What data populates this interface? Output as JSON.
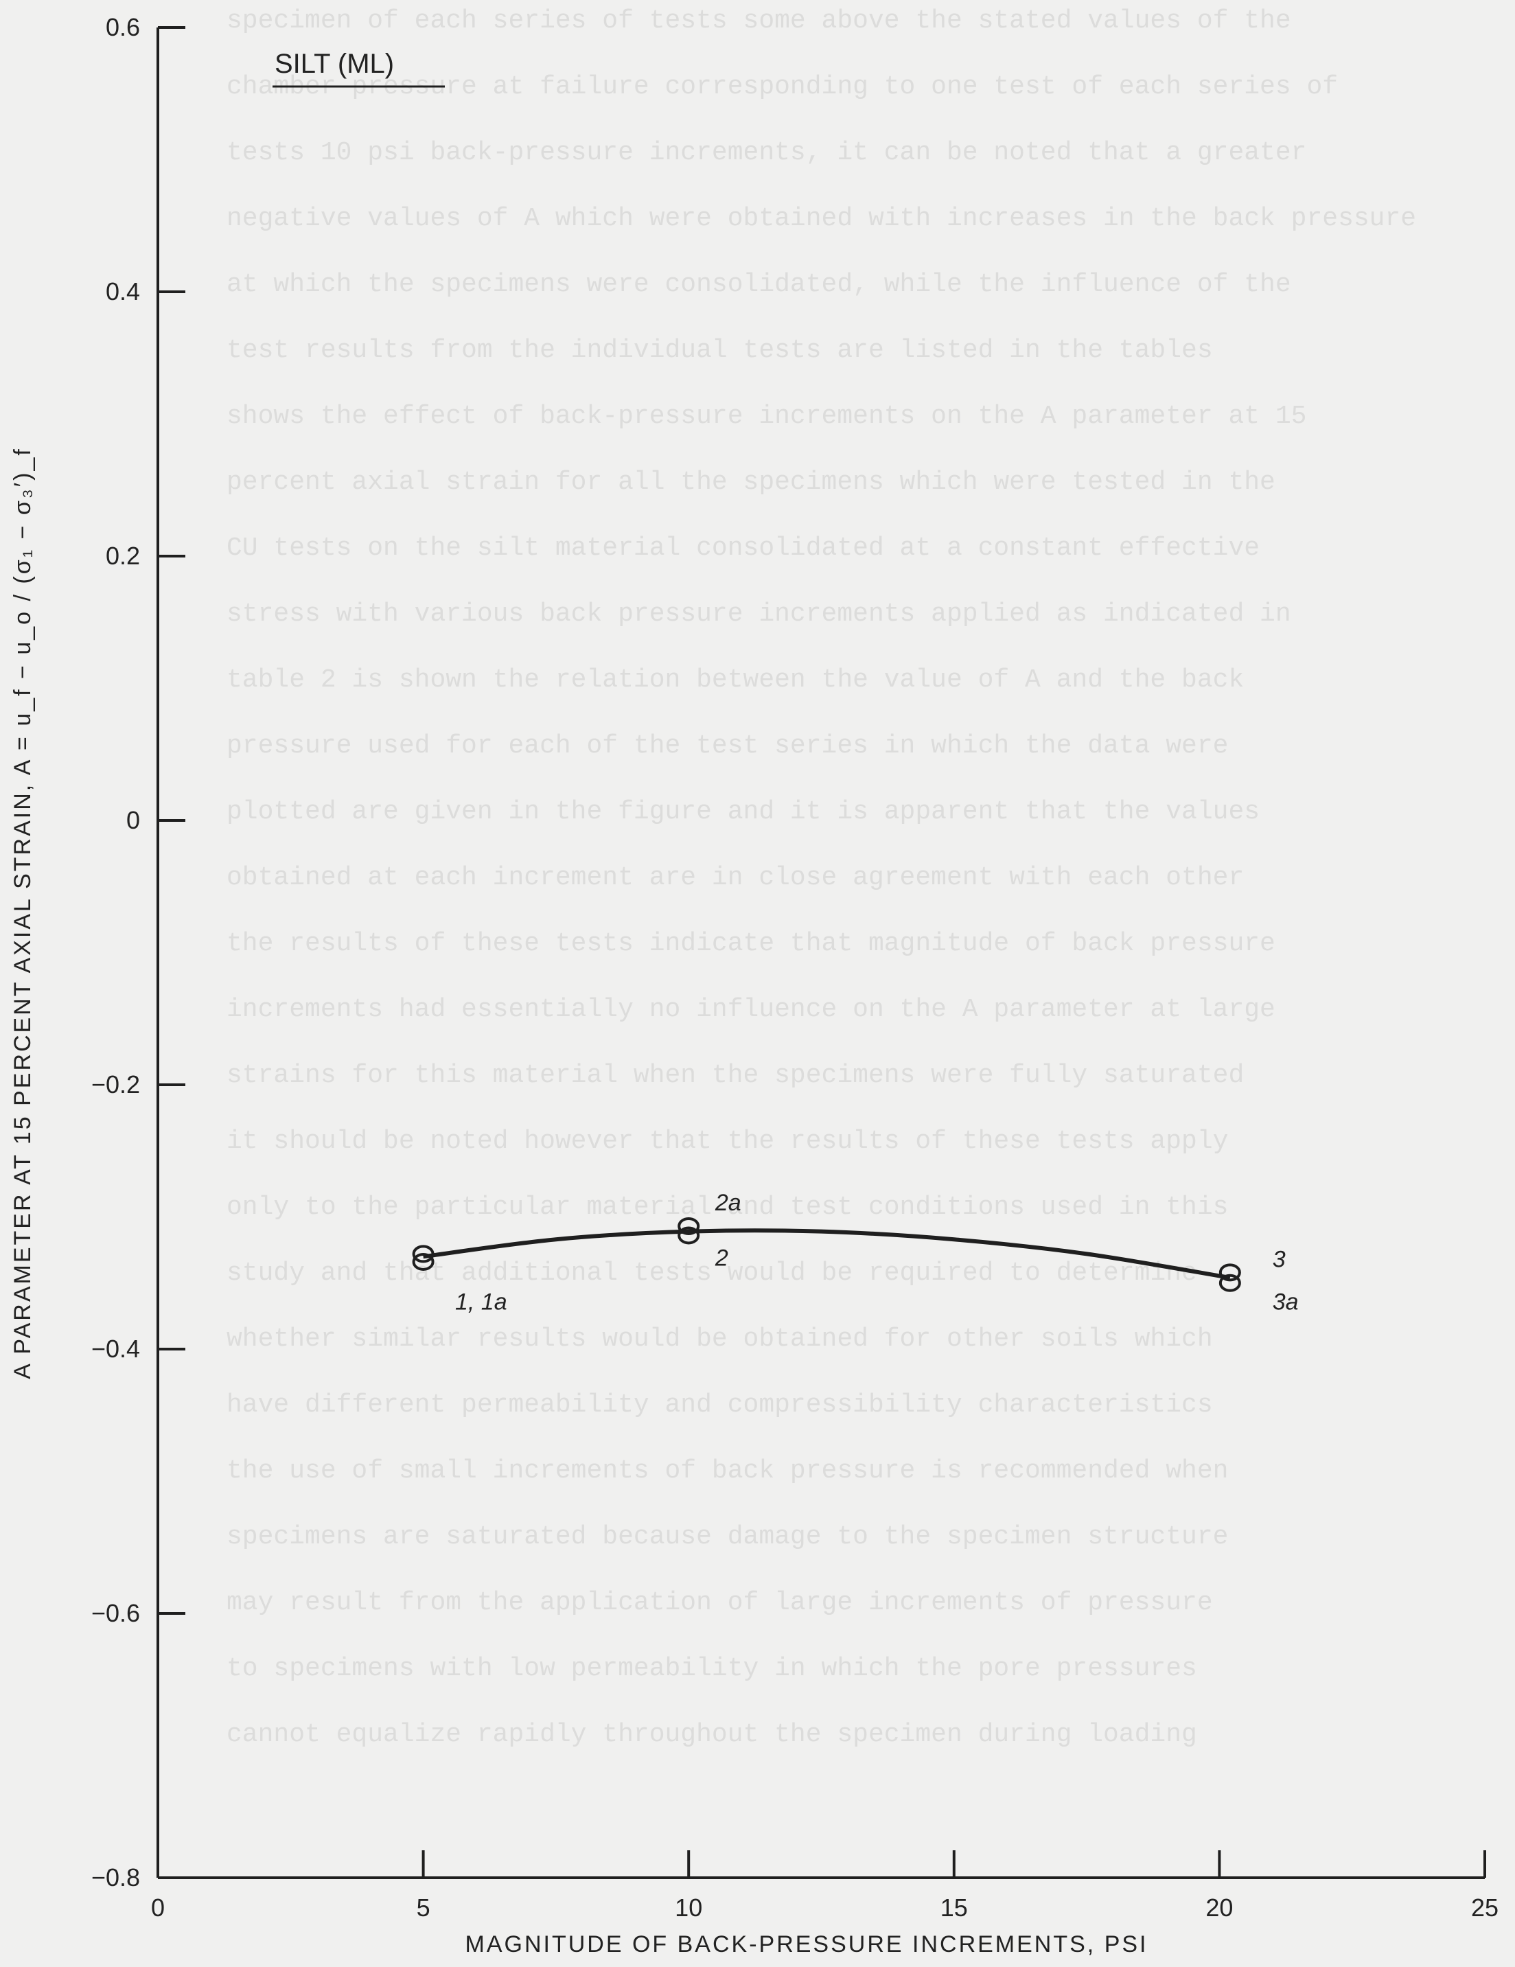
{
  "chart_data": {
    "type": "scatter",
    "title": "SILT (ML)",
    "xlabel": "MAGNITUDE OF BACK-PRESSURE INCREMENTS, PSI",
    "ylabel": "A PARAMETER AT 15 PERCENT AXIAL STRAIN, A = u_f − u_o / (σ₁ − σ₃′)_f",
    "xlim": [
      0,
      25
    ],
    "ylim": [
      -0.8,
      0.6
    ],
    "x_ticks": [
      0,
      5,
      10,
      15,
      20,
      25
    ],
    "y_ticks": [
      0.6,
      0.4,
      0.2,
      0,
      -0.2,
      -0.4,
      -0.6,
      -0.8
    ],
    "x_tick_labels": [
      "0",
      "5",
      "10",
      "15",
      "20",
      "25"
    ],
    "y_tick_labels": [
      "0.6",
      "0.4",
      "0.2",
      "0",
      "−0.2",
      "−0.4",
      "−0.6",
      "−0.8"
    ],
    "grid": false,
    "series": [
      {
        "points": [
          {
            "x": 5.0,
            "y": -0.328
          },
          {
            "x": 5.0,
            "y": -0.334
          },
          {
            "x": 10.0,
            "y": -0.307
          },
          {
            "x": 10.0,
            "y": -0.314
          },
          {
            "x": 20.2,
            "y": -0.342
          },
          {
            "x": 20.2,
            "y": -0.35
          }
        ],
        "curve": [
          {
            "x": 5.0,
            "y": -0.33
          },
          {
            "x": 7.5,
            "y": -0.317
          },
          {
            "x": 10.0,
            "y": -0.311
          },
          {
            "x": 12.5,
            "y": -0.311
          },
          {
            "x": 15.0,
            "y": -0.317
          },
          {
            "x": 17.5,
            "y": -0.328
          },
          {
            "x": 20.2,
            "y": -0.346
          }
        ]
      }
    ],
    "annotations": [
      {
        "text": "1, 1a",
        "x": 5.6,
        "y": -0.37
      },
      {
        "text": "2a",
        "x": 10.5,
        "y": -0.295
      },
      {
        "text": "2",
        "x": 10.5,
        "y": -0.337
      },
      {
        "text": "3",
        "x": 21.0,
        "y": -0.338
      },
      {
        "text": "3a",
        "x": 21.0,
        "y": -0.37
      }
    ]
  }
}
